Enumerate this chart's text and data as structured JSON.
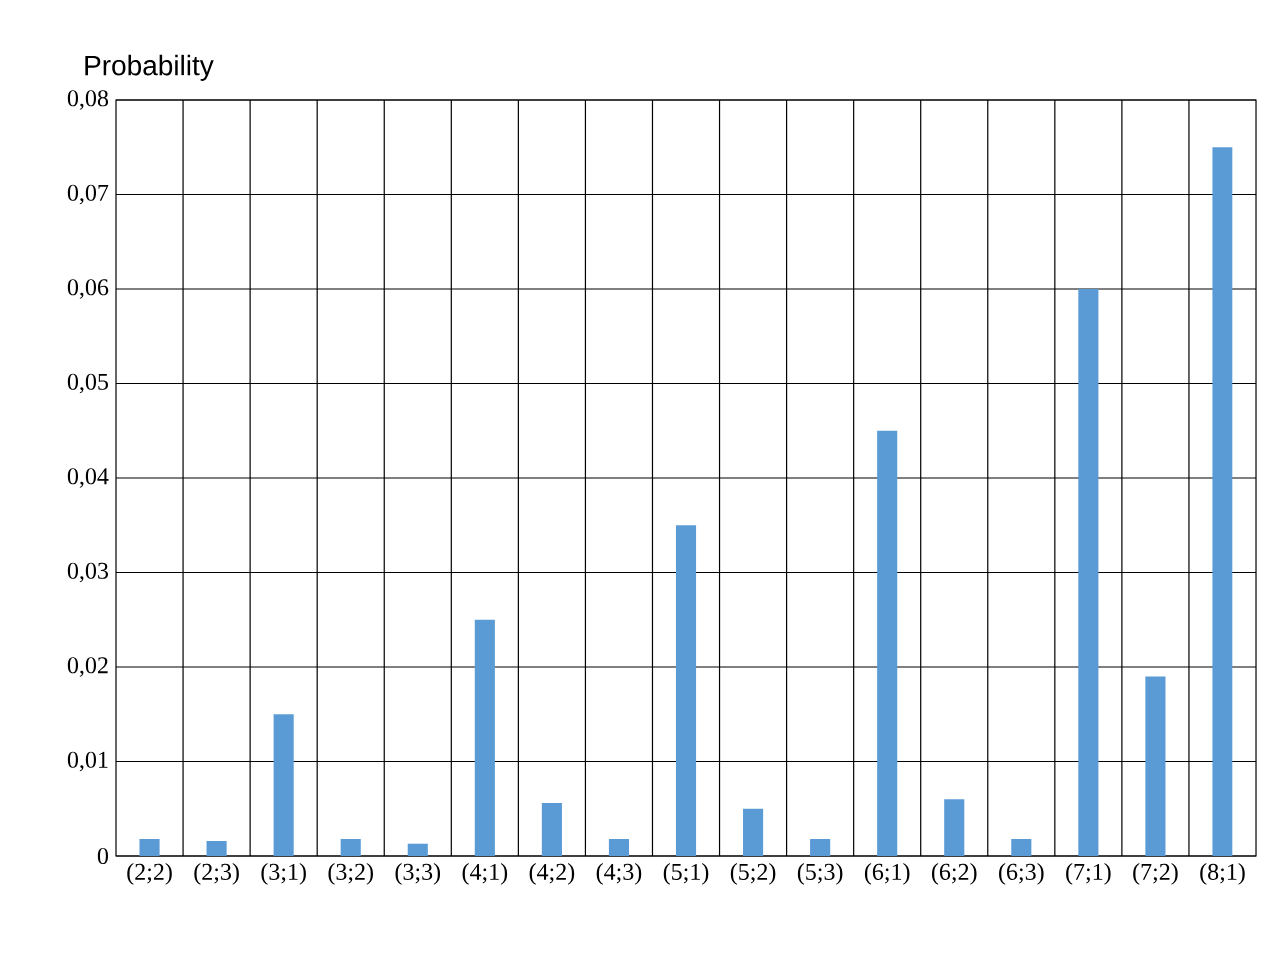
{
  "chart_data": {
    "type": "bar",
    "ylabel": "Probability",
    "categories": [
      "(2;2)",
      "(2;3)",
      "(3;1)",
      "(3;2)",
      "(3;3)",
      "(4;1)",
      "(4;2)",
      "(4;3)",
      "(5;1)",
      "(5;2)",
      "(5;3)",
      "(6;1)",
      "(6;2)",
      "(6;3)",
      "(7;1)",
      "(7;2)",
      "(8;1)"
    ],
    "values": [
      0.0018,
      0.0016,
      0.015,
      0.0018,
      0.0013,
      0.025,
      0.0056,
      0.0018,
      0.035,
      0.005,
      0.0018,
      0.045,
      0.006,
      0.0018,
      0.06,
      0.019,
      0.075
    ],
    "color": "#5b9bd5",
    "ylim": [
      0,
      0.08
    ],
    "yticks": [
      0,
      {
        "value": 0.01,
        "label": "0,01"
      },
      {
        "value": 0.02,
        "label": "0,02"
      },
      {
        "value": 0.03,
        "label": "0,03"
      },
      {
        "value": 0.04,
        "label": "0,04"
      },
      {
        "value": 0.05,
        "label": "0,05"
      },
      {
        "value": 0.06,
        "label": "0,06"
      },
      {
        "value": 0.07,
        "label": "0,07"
      },
      {
        "value": 0.08,
        "label": "0,08"
      }
    ],
    "grid": true
  }
}
